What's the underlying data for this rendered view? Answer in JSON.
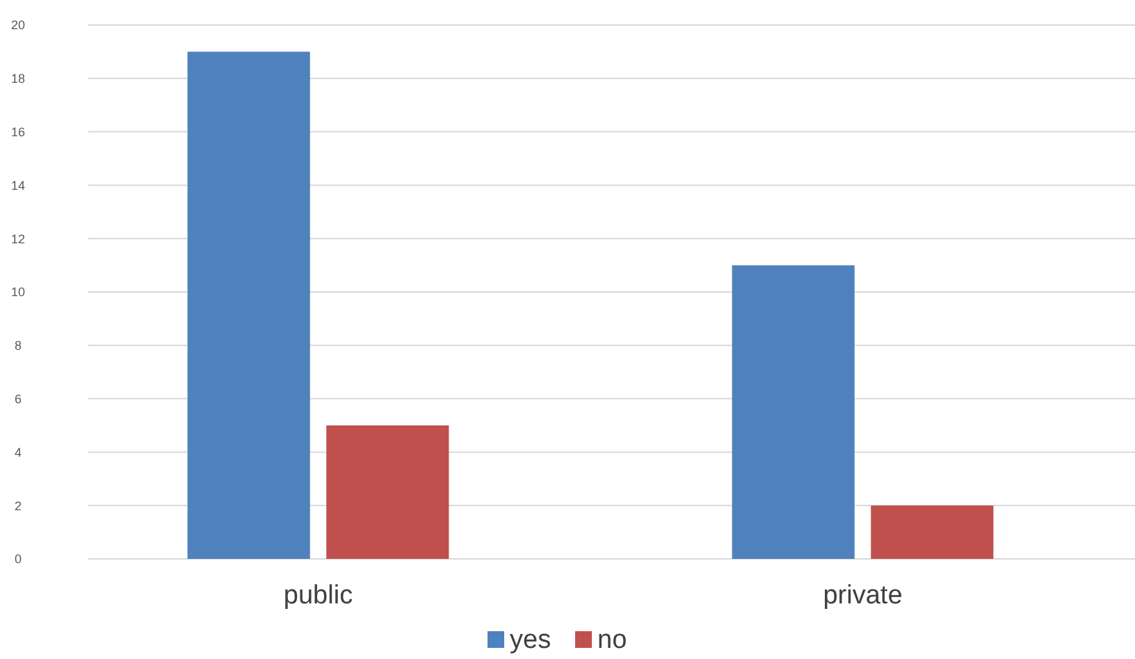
{
  "chart_data": {
    "type": "bar",
    "categories": [
      "public",
      "private"
    ],
    "series": [
      {
        "name": "yes",
        "color": "#4f81bd",
        "values": [
          19,
          11
        ]
      },
      {
        "name": "no",
        "color": "#c0504d",
        "values": [
          5,
          2
        ]
      }
    ],
    "ylim": [
      0,
      20
    ],
    "yticks": [
      0,
      2,
      4,
      6,
      8,
      10,
      12,
      14,
      16,
      18,
      20
    ],
    "grid": "y",
    "legend": "bottom"
  }
}
